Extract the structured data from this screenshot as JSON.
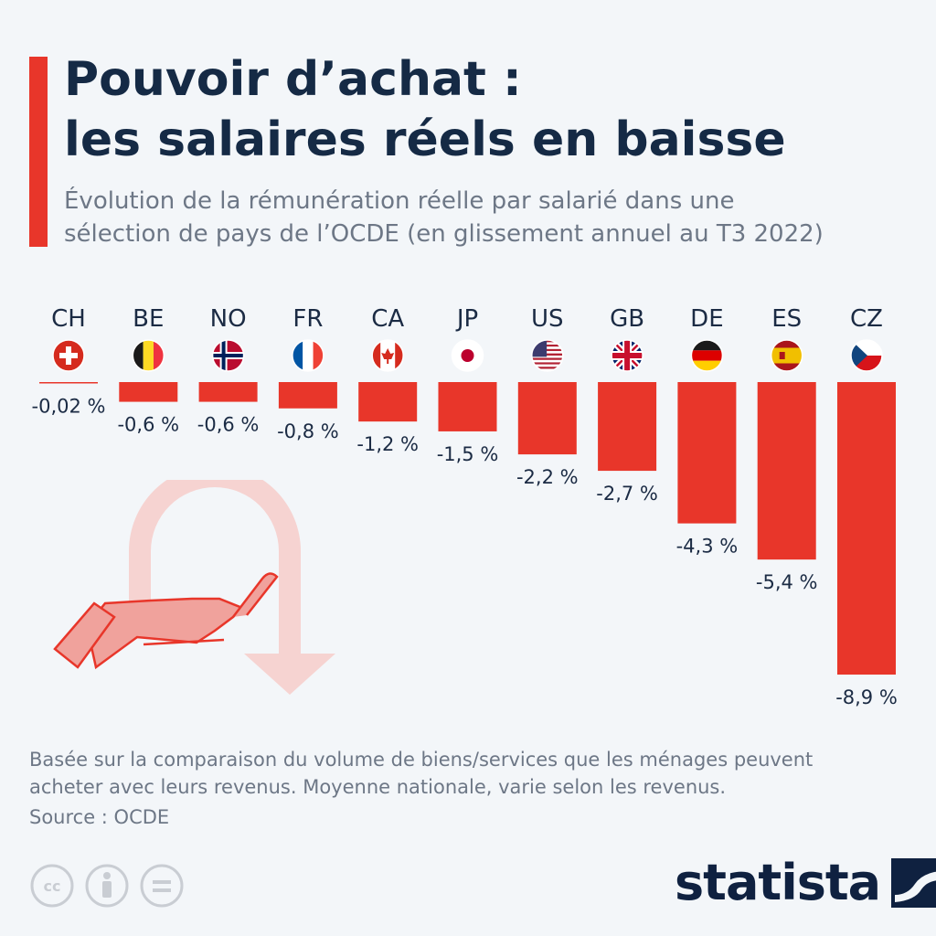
{
  "title": {
    "line1": "Pouvoir d’achat :",
    "line2": "les salaires réels en baisse"
  },
  "subtitle": {
    "line1": "Évolution de la rémunération réelle par salarié dans une",
    "line2": "sélection de pays de l’OCDE (en glissement annuel au T3 2022)"
  },
  "footnote": {
    "line1": "Basée sur la comparaison du volume de biens/services que les ménages peuvent",
    "line2": "acheter avec leurs revenus. Moyenne nationale, varie selon les revenus."
  },
  "source": "Source : OCDE",
  "brand": {
    "name": "statista"
  },
  "license_icons": [
    "creative-commons-icon",
    "attribution-icon",
    "no-derivatives-icon"
  ],
  "colors": {
    "accent": "#e8362a",
    "title": "#152a45",
    "muted": "#6d7786",
    "background": "#f3f6f9"
  },
  "chart_data": {
    "type": "bar",
    "categories": [
      "CH",
      "BE",
      "NO",
      "FR",
      "CA",
      "JP",
      "US",
      "GB",
      "DE",
      "ES",
      "CZ"
    ],
    "flag_icons": [
      "switzerland-flag-icon",
      "belgium-flag-icon",
      "norway-flag-icon",
      "france-flag-icon",
      "canada-flag-icon",
      "japan-flag-icon",
      "usa-flag-icon",
      "uk-flag-icon",
      "germany-flag-icon",
      "spain-flag-icon",
      "czech-flag-icon"
    ],
    "values": [
      -0.02,
      -0.6,
      -0.6,
      -0.8,
      -1.2,
      -1.5,
      -2.2,
      -2.7,
      -4.3,
      -5.4,
      -8.9
    ],
    "value_labels": [
      "-0,02 %",
      "-0,6 %",
      "-0,6 %",
      "-0,8 %",
      "-1,2 %",
      "-1,5 %",
      "-2,2 %",
      "-2,7 %",
      "-4,3 %",
      "-5,4 %",
      "-8,9 %"
    ],
    "bar_color": "#e8362a",
    "ylim": [
      -8.9,
      0
    ],
    "grid": false,
    "legend": "none"
  }
}
